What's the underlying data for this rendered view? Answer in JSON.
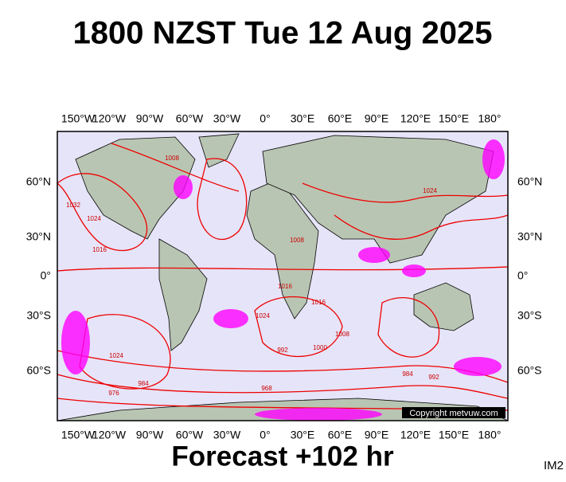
{
  "header": {
    "title": "1800 NZST Tue 12 Aug 2025"
  },
  "axes": {
    "top": [
      "150°W",
      "120°W",
      "90°W",
      "60°W",
      "30°W",
      "0°",
      "30°E",
      "60°E",
      "90°E",
      "120°E",
      "150°E",
      "180°"
    ],
    "bottom": [
      "150°W",
      "120°W",
      "90°W",
      "60°W",
      "30°W",
      "0°",
      "30°E",
      "60°E",
      "90°E",
      "120°E",
      "150°E",
      "180°"
    ],
    "left": [
      "60°N",
      "30°N",
      "0°",
      "30°S",
      "60°S"
    ],
    "right": [
      "60°N",
      "30°N",
      "0°",
      "30°S",
      "60°S"
    ]
  },
  "isobar_labels": [
    "1032",
    "1024",
    "1016",
    "1008",
    "1008",
    "1016",
    "1024",
    "1024",
    "1016",
    "1008",
    "1000",
    "992",
    "984",
    "976",
    "968",
    "1024",
    "992",
    "984"
  ],
  "copyright": "Copyright metvuw.com",
  "footer": {
    "forecast": "Forecast +102 hr",
    "code": "IM2"
  }
}
